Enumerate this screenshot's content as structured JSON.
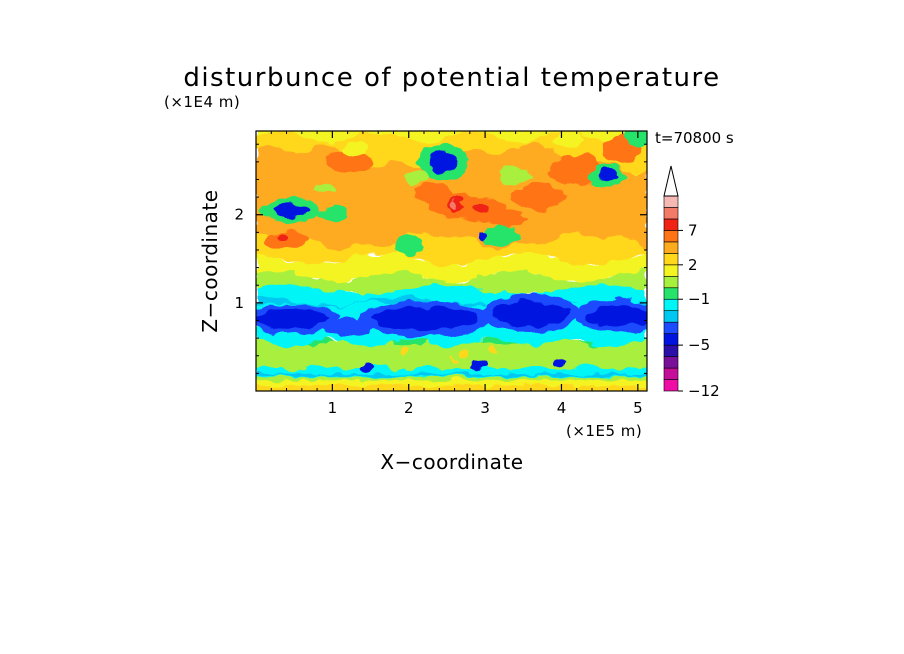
{
  "chart_data": {
    "type": "heatmap",
    "title": "disturbunce of potential temperature",
    "xlabel": "X−coordinate",
    "ylabel": "Z−coordinate",
    "x_unit": "(×1E5 m)",
    "y_unit": "(×1E4 m)",
    "time_label": "t=70800 s",
    "xlim": [
      0,
      5.12
    ],
    "ylim": [
      0,
      2.95
    ],
    "x_ticks": [
      1,
      2,
      3,
      4,
      5
    ],
    "x_tick_labels": [
      "1",
      "2",
      "3",
      "4",
      "5"
    ],
    "y_ticks": [
      1,
      2
    ],
    "y_tick_labels": [
      "1",
      "2"
    ],
    "colorbar": {
      "levels": [
        -12,
        -11,
        -9,
        -7,
        -5,
        -4,
        -3,
        -2,
        -1,
        0,
        1,
        2,
        3,
        5,
        7,
        9,
        11
      ],
      "colors": [
        "#ee0ea6",
        "#c40e9a",
        "#7a109a",
        "#2a0fa8",
        "#0014e0",
        "#1d4bff",
        "#00c8f0",
        "#00f6f6",
        "#27e36a",
        "#a8f03e",
        "#f4f423",
        "#ffd81c",
        "#ffab20",
        "#ff7417",
        "#f02213",
        "#f47a68",
        "#f6b8b3"
      ],
      "extend": "max",
      "tick_values": [
        -12,
        -5,
        -1,
        2,
        7
      ],
      "tick_labels": [
        "−12",
        "−5",
        "−1",
        "2",
        "7"
      ]
    },
    "field": {
      "description_hidden": false,
      "features": [
        {
          "x": 2.6,
          "z": 2.1,
          "value": 9
        },
        {
          "x": 2.9,
          "z": 2.05,
          "value": 7
        },
        {
          "x": 0.4,
          "z": 1.75,
          "value": 5
        },
        {
          "x": 2.3,
          "z": 2.25,
          "value": 5
        },
        {
          "x": 3.7,
          "z": 2.2,
          "value": 5
        },
        {
          "x": 4.2,
          "z": 2.5,
          "value": 5
        },
        {
          "x": 4.8,
          "z": 2.75,
          "value": 5
        },
        {
          "x": 1.3,
          "z": 2.6,
          "value": 3
        },
        {
          "x": 3.2,
          "z": 2.55,
          "value": 3
        },
        {
          "x": 0.4,
          "z": 2.05,
          "value": -5
        },
        {
          "x": 2.4,
          "z": 2.6,
          "value": -5
        },
        {
          "x": 4.6,
          "z": 2.45,
          "value": -5
        },
        {
          "x": 0.5,
          "z": 0.85,
          "value": -5
        },
        {
          "x": 2.3,
          "z": 0.85,
          "value": -5
        },
        {
          "x": 3.7,
          "z": 0.9,
          "value": -5
        },
        {
          "x": 4.8,
          "z": 0.85,
          "value": -5
        },
        {
          "x": 2.9,
          "z": 0.3,
          "value": -5
        },
        {
          "x": 2.8,
          "z": 0.45,
          "value": 3
        }
      ]
    }
  }
}
